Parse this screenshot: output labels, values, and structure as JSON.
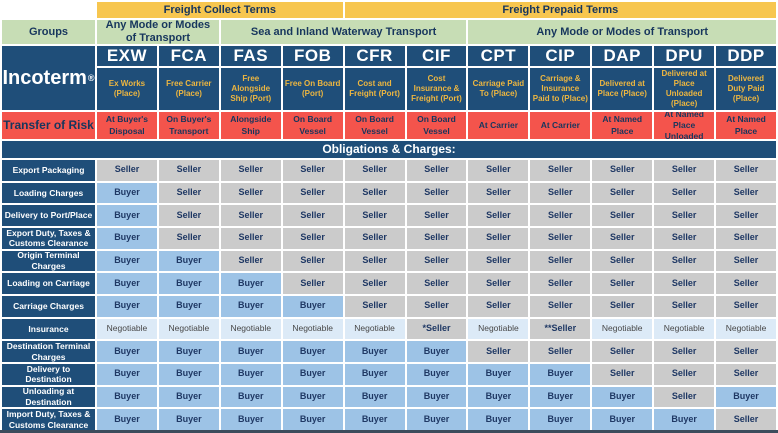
{
  "chart_data": {
    "type": "table",
    "header": {
      "freight_collect": "Freight Collect Terms",
      "freight_prepaid": "Freight Prepaid Terms",
      "groups_label": "Groups",
      "mode_any_left": "Any Mode or Modes of Transport",
      "mode_sea": "Sea and Inland Waterway Transport",
      "mode_any_right": "Any Mode or Modes of Transport",
      "incoterm_label": "Incoterm",
      "incoterm_reg": "®",
      "transfer_of_risk_label": "Transfer of Risk",
      "obligations_banner": "Obligations & Charges:"
    },
    "incoterms": [
      {
        "code": "EXW",
        "description": "Ex Works (Place)",
        "risk": "At Buyer's Disposal"
      },
      {
        "code": "FCA",
        "description": "Free Carrier (Place)",
        "risk": "On Buyer's Transport"
      },
      {
        "code": "FAS",
        "description": "Free Alongside Ship (Port)",
        "risk": "Alongside Ship"
      },
      {
        "code": "FOB",
        "description": "Free On Board (Port)",
        "risk": "On Board Vessel"
      },
      {
        "code": "CFR",
        "description": "Cost and Freight (Port)",
        "risk": "On Board Vessel"
      },
      {
        "code": "CIF",
        "description": "Cost Insurance & Freight (Port)",
        "risk": "On Board Vessel"
      },
      {
        "code": "CPT",
        "description": "Carriage Paid To (Place)",
        "risk": "At Carrier"
      },
      {
        "code": "CIP",
        "description": "Carriage & Insurance Paid to (Place)",
        "risk": "At Carrier"
      },
      {
        "code": "DAP",
        "description": "Delivered at Place (Place)",
        "risk": "At Named Place"
      },
      {
        "code": "DPU",
        "description": "Delivered at Place Unloaded (Place)",
        "risk": "At Named Place Unloaded"
      },
      {
        "code": "DDP",
        "description": "Delivered Duty Paid (Place)",
        "risk": "At Named Place"
      }
    ],
    "obligation_rows": [
      {
        "label": "Export Packaging",
        "values": [
          "Seller",
          "Seller",
          "Seller",
          "Seller",
          "Seller",
          "Seller",
          "Seller",
          "Seller",
          "Seller",
          "Seller",
          "Seller"
        ]
      },
      {
        "label": "Loading Charges",
        "values": [
          "Buyer",
          "Seller",
          "Seller",
          "Seller",
          "Seller",
          "Seller",
          "Seller",
          "Seller",
          "Seller",
          "Seller",
          "Seller"
        ]
      },
      {
        "label": "Delivery to Port/Place",
        "values": [
          "Buyer",
          "Seller",
          "Seller",
          "Seller",
          "Seller",
          "Seller",
          "Seller",
          "Seller",
          "Seller",
          "Seller",
          "Seller"
        ]
      },
      {
        "label": "Export Duty, Taxes & Customs Clearance",
        "values": [
          "Buyer",
          "Seller",
          "Seller",
          "Seller",
          "Seller",
          "Seller",
          "Seller",
          "Seller",
          "Seller",
          "Seller",
          "Seller"
        ]
      },
      {
        "label": "Origin Terminal Charges",
        "values": [
          "Buyer",
          "Buyer",
          "Seller",
          "Seller",
          "Seller",
          "Seller",
          "Seller",
          "Seller",
          "Seller",
          "Seller",
          "Seller"
        ]
      },
      {
        "label": "Loading on Carriage",
        "values": [
          "Buyer",
          "Buyer",
          "Buyer",
          "Seller",
          "Seller",
          "Seller",
          "Seller",
          "Seller",
          "Seller",
          "Seller",
          "Seller"
        ]
      },
      {
        "label": "Carriage Charges",
        "values": [
          "Buyer",
          "Buyer",
          "Buyer",
          "Buyer",
          "Seller",
          "Seller",
          "Seller",
          "Seller",
          "Seller",
          "Seller",
          "Seller"
        ]
      },
      {
        "label": "Insurance",
        "values": [
          "Negotiable",
          "Negotiable",
          "Negotiable",
          "Negotiable",
          "Negotiable",
          "*Seller",
          "Negotiable",
          "**Seller",
          "Negotiable",
          "Negotiable",
          "Negotiable"
        ]
      },
      {
        "label": "Destination Terminal Charges",
        "values": [
          "Buyer",
          "Buyer",
          "Buyer",
          "Buyer",
          "Buyer",
          "Buyer",
          "Seller",
          "Seller",
          "Seller",
          "Seller",
          "Seller"
        ]
      },
      {
        "label": "Delivery to Destination",
        "values": [
          "Buyer",
          "Buyer",
          "Buyer",
          "Buyer",
          "Buyer",
          "Buyer",
          "Buyer",
          "Buyer",
          "Seller",
          "Seller",
          "Seller"
        ]
      },
      {
        "label": "Unloading at Destination",
        "values": [
          "Buyer",
          "Buyer",
          "Buyer",
          "Buyer",
          "Buyer",
          "Buyer",
          "Buyer",
          "Buyer",
          "Buyer",
          "Seller",
          "Buyer"
        ]
      },
      {
        "label": "Import Duty, Taxes & Customs Clearance",
        "values": [
          "Buyer",
          "Buyer",
          "Buyer",
          "Buyer",
          "Buyer",
          "Buyer",
          "Buyer",
          "Buyer",
          "Buyer",
          "Buyer",
          "Seller"
        ]
      }
    ]
  },
  "colors": {
    "navy": "#1f4e79",
    "yellow": "#f7c64f",
    "green": "#c7ddb5",
    "red": "#f4544c",
    "buyer_blue": "#9dc3e6",
    "seller_gray": "#cbcbcb",
    "negotiable_blue": "#dceaf7",
    "description_gold": "#edb640",
    "dark_text": "#17365d"
  }
}
